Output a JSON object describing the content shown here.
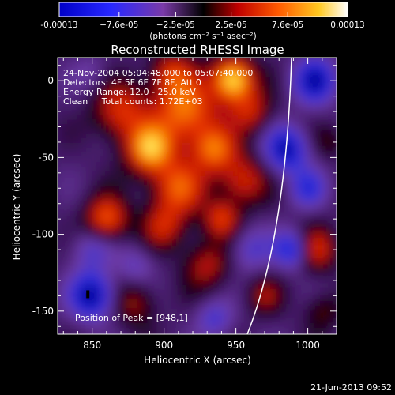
{
  "chart_data": {
    "type": "heatmap",
    "title": "Reconstructed RHESSI Image",
    "xlabel": "Heliocentric X (arcsec)",
    "ylabel": "Heliocentric Y (arcsec)",
    "xlim": [
      826,
      1020
    ],
    "ylim": [
      -165,
      15
    ],
    "x_ticks": [
      850,
      900,
      950,
      1000
    ],
    "y_ticks": [
      0,
      -50,
      -100,
      -150
    ],
    "x_tick_labels": [
      "850",
      "900",
      "950",
      "1000"
    ],
    "y_tick_labels": [
      "0",
      "-50",
      "-100",
      "-150"
    ],
    "colorbar": {
      "ticks": [
        -0.00013,
        -7.6e-05,
        -2.5e-05,
        2.5e-05,
        7.6e-05,
        0.00013
      ],
      "tick_labels": [
        "-0.00013",
        "−7.6e-05",
        "−2.5e-05",
        "2.5e-05",
        "7.6e-05",
        "0.00013"
      ],
      "range": [
        -0.00013,
        0.00013
      ],
      "unit_label": "(photons cm⁻² s⁻¹ asec⁻²)"
    },
    "annotations": [
      "24-Nov-2004 05:04:48.000 to 05:07:40.000",
      "Detectors: 4F 5F 6F 7F 8F, Att 0",
      "Energy Range: 12.0 - 25.0 keV",
      "Clean     Total counts: 1.72E+03"
    ],
    "peak_label": "Position of Peak = [948,1]",
    "peak": [
      948,
      1
    ],
    "colormap": [
      "#0000a0",
      "#3030e0",
      "#7040a0",
      "#000000",
      "#a01010",
      "#e03000",
      "#ff9000",
      "#ffe040",
      "#ffffff"
    ]
  },
  "footer": {
    "date": "21-Jun-2013 09:52"
  }
}
